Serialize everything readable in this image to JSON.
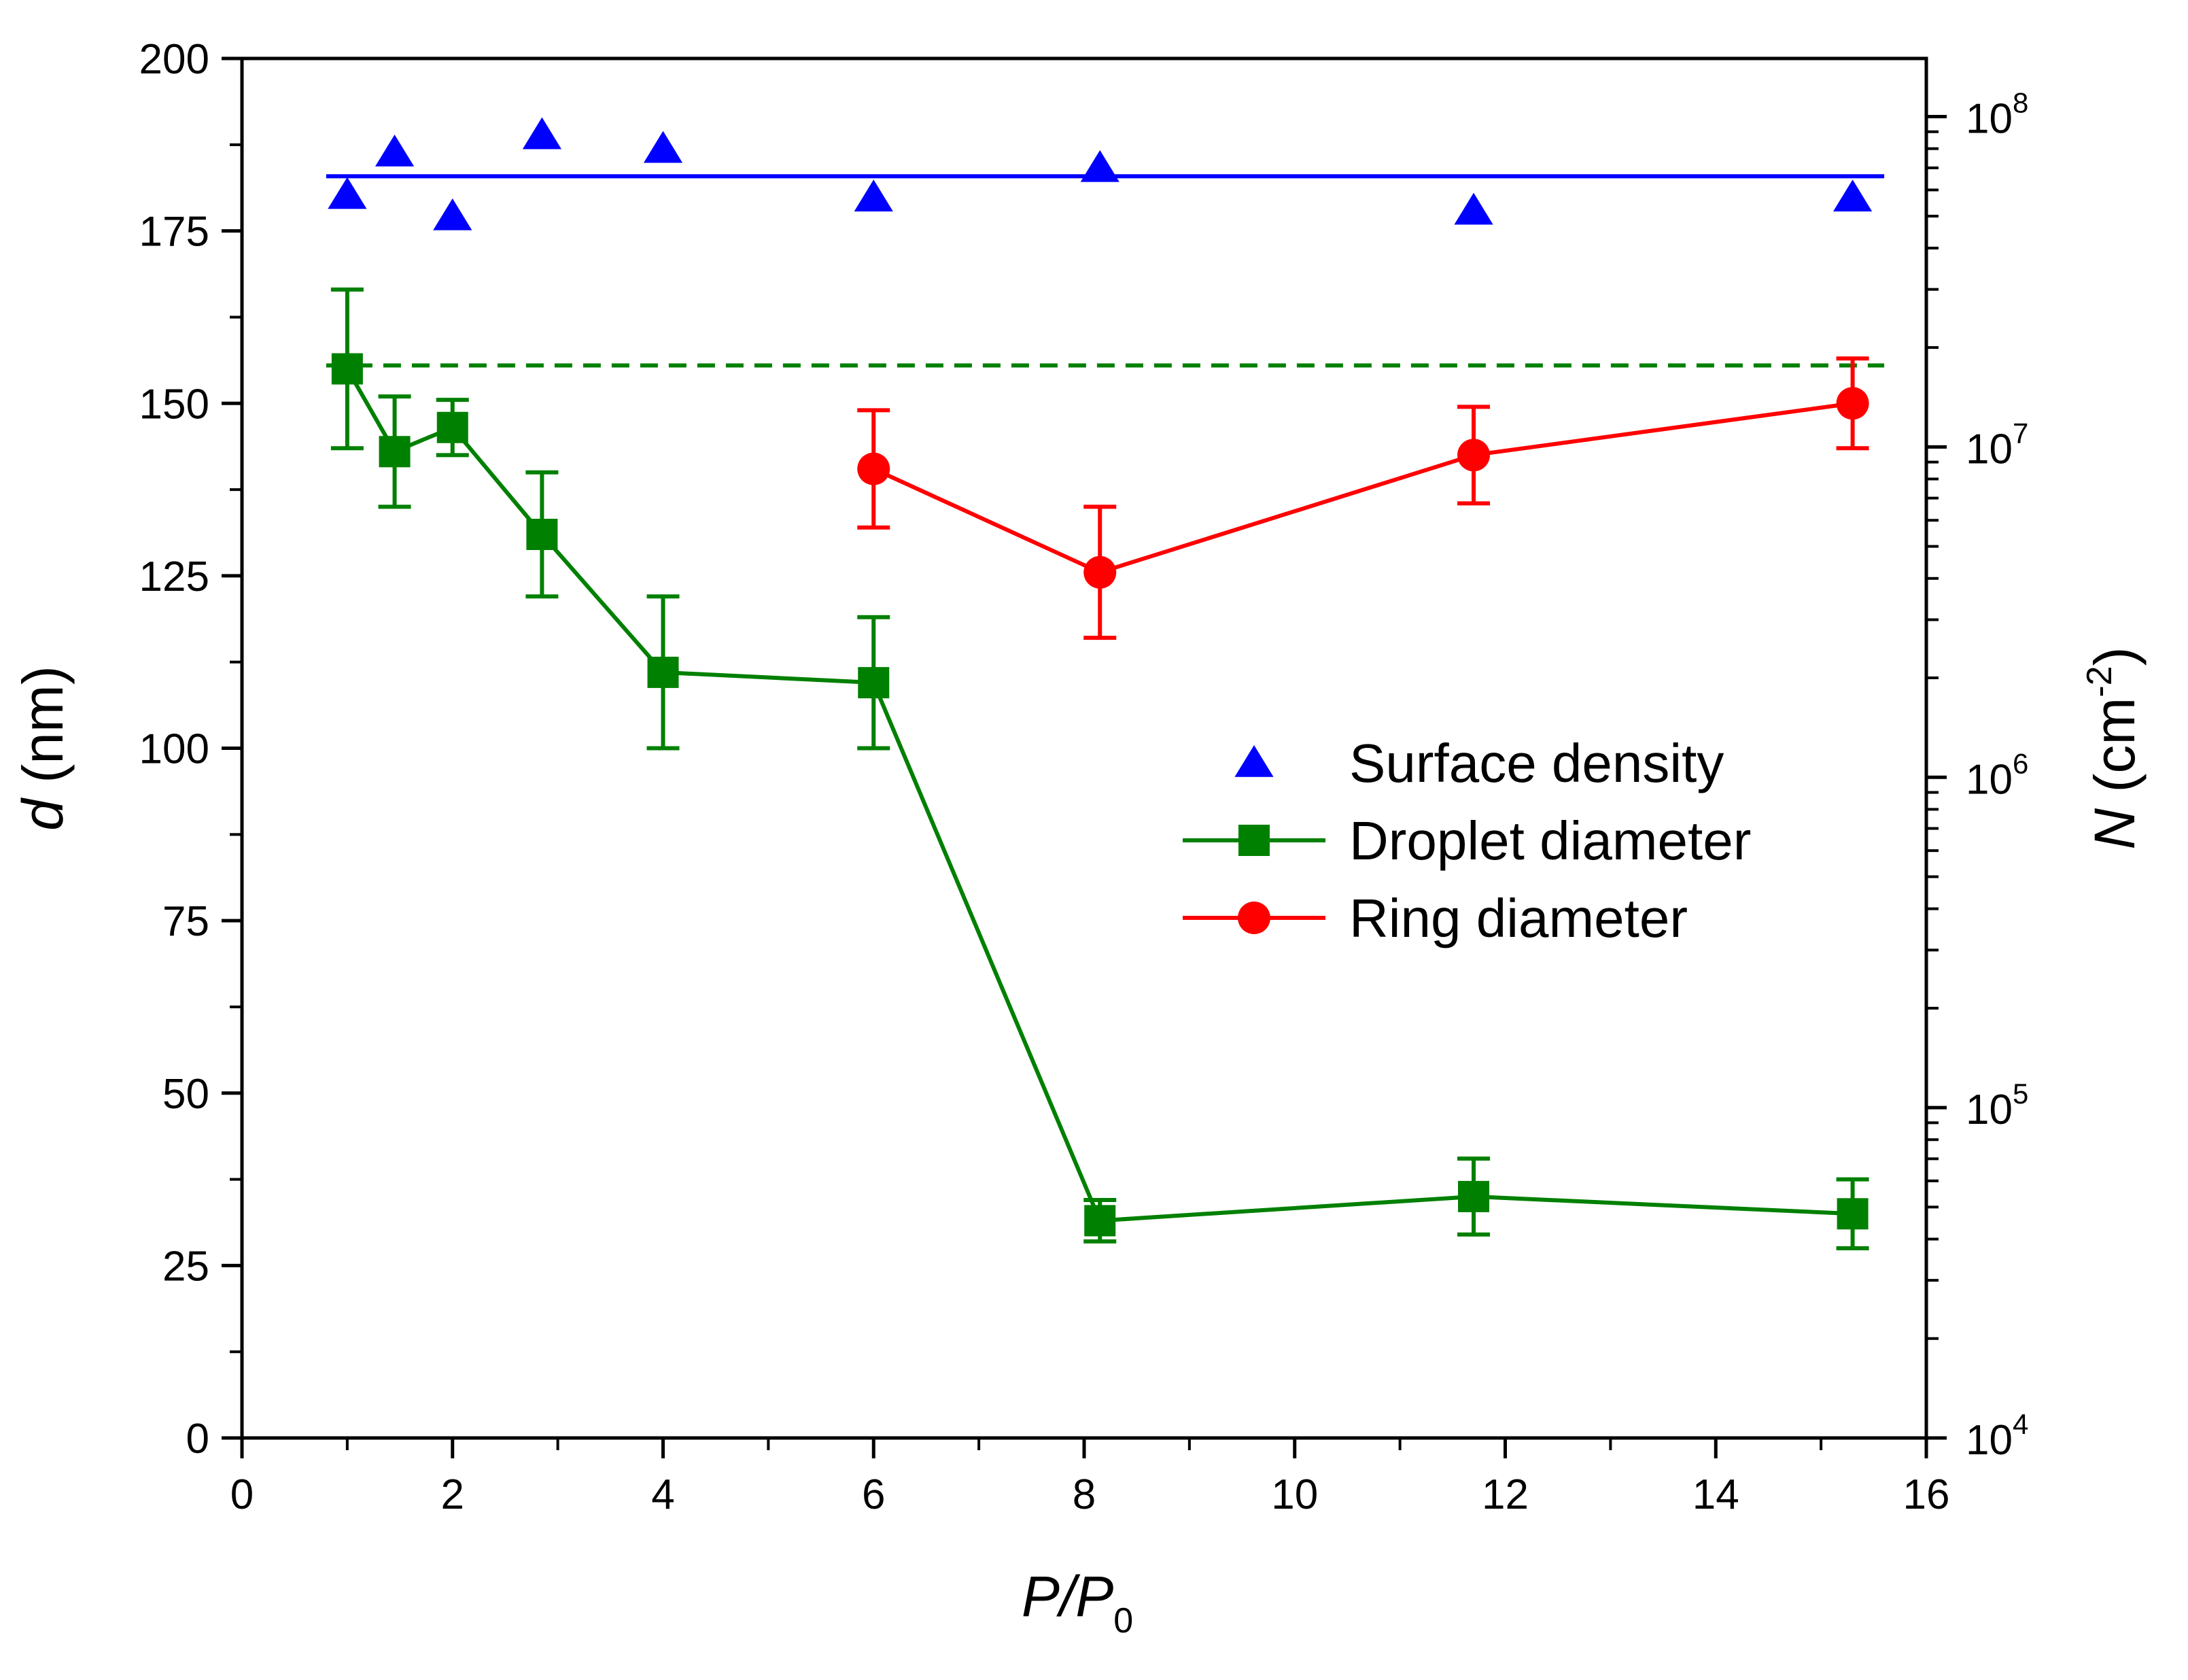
{
  "chart_data": {
    "type": "scatter",
    "x_axis": {
      "label_main": "P/P",
      "label_sub": "0",
      "range": [
        0,
        16
      ],
      "ticks": [
        0,
        2,
        4,
        6,
        8,
        10,
        12,
        14,
        16
      ],
      "tick_labels": [
        "0",
        "2",
        "4",
        "6",
        "8",
        "10",
        "12",
        "14",
        "16"
      ],
      "minor_step": 1
    },
    "y_left": {
      "label_var": "d",
      "label_unit": " (nm)",
      "range": [
        0,
        200
      ],
      "ticks": [
        0,
        25,
        50,
        75,
        100,
        125,
        150,
        175,
        200
      ],
      "tick_labels": [
        "0",
        "25",
        "50",
        "75",
        "100",
        "125",
        "150",
        "175",
        "200"
      ]
    },
    "y_right": {
      "label_var": "N",
      "label_unit": " (cm",
      "label_sup": "-2",
      "label_close": ")",
      "scale": "log",
      "range": [
        10000,
        150000000
      ],
      "ticks": [
        10000,
        100000,
        1000000,
        10000000,
        100000000
      ],
      "tick_base": [
        "10",
        "10",
        "10",
        "10",
        "10"
      ],
      "tick_exp": [
        "4",
        "5",
        "6",
        "7",
        "8"
      ]
    },
    "series": [
      {
        "name": "Surface density",
        "axis": "right",
        "marker": "triangle",
        "line": false,
        "color": "#0000ff",
        "x": [
          1.0,
          1.45,
          2.0,
          2.85,
          4.0,
          6.0,
          8.15,
          11.7,
          15.3
        ],
        "y": [
          58000000,
          78000000,
          50000000,
          88000000,
          80000000,
          57000000,
          70000000,
          52000000,
          57000000
        ]
      },
      {
        "name": "Droplet diameter",
        "axis": "left",
        "marker": "square",
        "line": true,
        "color": "#008000",
        "x": [
          1.0,
          1.45,
          2.0,
          2.85,
          4.0,
          6.0,
          8.15,
          11.7,
          15.3
        ],
        "y": [
          155,
          143,
          146.5,
          131,
          111,
          109.5,
          31.5,
          35,
          32.5
        ],
        "err": [
          11.5,
          8,
          4,
          9,
          11,
          9.5,
          3,
          5.5,
          5
        ]
      },
      {
        "name": "Ring diameter",
        "axis": "left",
        "marker": "circle",
        "line": true,
        "color": "#ff0000",
        "x": [
          6.0,
          8.15,
          11.7,
          15.3
        ],
        "y": [
          140.5,
          125.5,
          142.5,
          150
        ],
        "err": [
          8.5,
          9.5,
          7,
          6.5
        ]
      }
    ],
    "reference_lines": [
      {
        "name": "surface-density-fit",
        "axis": "right",
        "y": 66000000,
        "x_range": [
          0.8,
          15.6
        ],
        "style": "solid",
        "color": "#0000ff"
      },
      {
        "name": "droplet-initial-level",
        "axis": "left",
        "y": 155.5,
        "x_range": [
          0.8,
          15.6
        ],
        "style": "dashed",
        "color": "#008000"
      }
    ],
    "legend": {
      "position": "center-right",
      "entries": [
        "Surface density",
        "Droplet diameter",
        "Ring diameter"
      ]
    }
  }
}
